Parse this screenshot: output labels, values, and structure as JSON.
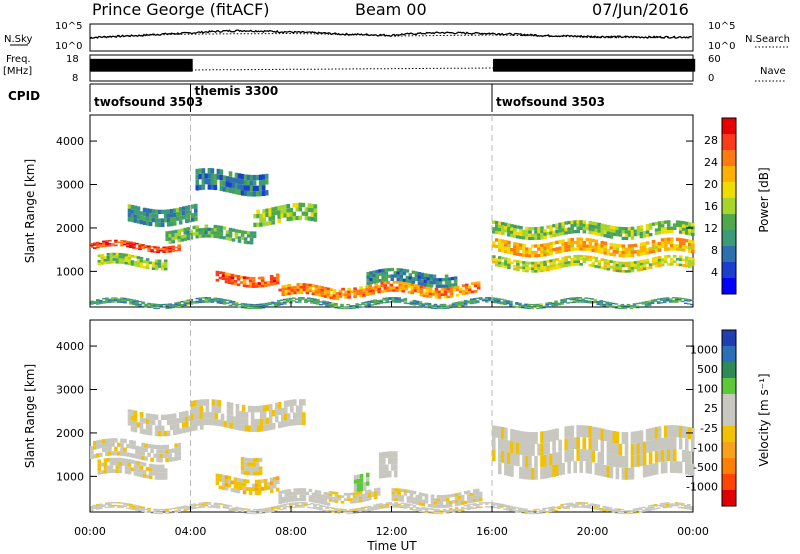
{
  "header": {
    "station": "Prince George (fitACF)",
    "beam": "Beam 00",
    "date": "07/Jun/2016"
  },
  "labels": {
    "nsky": "N.Sky",
    "nsearch": "N.Search",
    "freq_line1": "Freq.",
    "freq_line2": "[MHz]",
    "nave": "Nave",
    "cpid": "CPID",
    "power_range_ylabel": "Slant Range [km]",
    "velocity_range_ylabel": "Slant Range [km]",
    "xlabel": "Time UT",
    "power_cbar_label": "Power [dB]",
    "velocity_cbar_label": "Velocity [m s⁻¹]"
  },
  "noise_axis": {
    "left_ticks": [
      "10^5",
      "10^0"
    ],
    "right_ticks": [
      "10^5",
      "10^0"
    ]
  },
  "freq_axis": {
    "left_ticks": [
      "18",
      "8"
    ],
    "right_ticks": [
      "60",
      "0"
    ]
  },
  "cpid_segments": [
    {
      "label": "twofsound 3503",
      "start_hour": 0,
      "end_hour": 4
    },
    {
      "label": "themis 3300",
      "start_hour": 4,
      "end_hour": 16
    },
    {
      "label": "twofsound 3503",
      "start_hour": 16,
      "end_hour": 24
    }
  ],
  "power_colorbar": {
    "ticks": [
      "28",
      "24",
      "20",
      "16",
      "12",
      "8",
      "4"
    ],
    "colors": [
      "#e80000",
      "#ff3a1a",
      "#ff7a10",
      "#ffb000",
      "#f0dc00",
      "#a6d52c",
      "#4fa84a",
      "#3c9a78",
      "#2e6fb0",
      "#1a3fd0",
      "#0000ff"
    ]
  },
  "velocity_colorbar": {
    "ticks": [
      "1000",
      "500",
      "100",
      "25",
      "-25",
      "-100",
      "-500",
      "-1000"
    ],
    "colors": [
      "#1f3fb0",
      "#2a6fb8",
      "#2e8b57",
      "#5cc83a",
      "#c8c8c0",
      "#c8c8c0",
      "#f2c200",
      "#f7a21a",
      "#ff7f00",
      "#ff4500",
      "#e00000"
    ]
  },
  "chart_data": [
    {
      "type": "line",
      "title": "N.Sky",
      "xlabel": "",
      "ylabel": "N.Sky",
      "y_scale": "log",
      "ylim": [
        1,
        100000
      ],
      "series": [
        {
          "name": "N.Sky",
          "x": [
            0,
            2,
            4,
            6,
            8,
            10,
            12,
            14,
            16,
            18,
            20,
            22,
            24
          ],
          "y": [
            300,
            800,
            2500,
            8000,
            4000,
            1500,
            900,
            3000,
            2000,
            800,
            500,
            400,
            400
          ]
        },
        {
          "name": "N.Search",
          "x": [
            0,
            4,
            8,
            12,
            16,
            20,
            24
          ],
          "y": [
            200,
            1500,
            2000,
            600,
            1000,
            300,
            300
          ]
        }
      ]
    },
    {
      "type": "line",
      "title": "Freq.",
      "ylabel": "[MHz]",
      "ylim": [
        8,
        18
      ],
      "series": [
        {
          "name": "Freq.",
          "x": [
            0,
            4,
            4.01,
            16,
            16.01,
            24
          ],
          "y": [
            16,
            16,
            10.5,
            10.5,
            16,
            16
          ]
        },
        {
          "name": "Nave",
          "x": [
            0,
            4,
            16,
            24
          ],
          "y": [
            30,
            25,
            30,
            30
          ]
        }
      ]
    },
    {
      "type": "heatmap",
      "title": "Power [dB]",
      "xlabel": "",
      "ylabel": "Slant Range [km]",
      "xlim": [
        0,
        24
      ],
      "ylim": [
        180,
        4600
      ],
      "x_ticks": [
        "00:00",
        "04:00",
        "08:00",
        "12:00",
        "16:00",
        "20:00",
        "00:00"
      ],
      "y_ticks": [
        1000,
        2000,
        3000,
        4000
      ],
      "cbar_range": [
        0,
        30
      ],
      "bands": [
        {
          "t0": 0.0,
          "t1": 3.6,
          "r0": 1500,
          "r1": 1650,
          "value": 26
        },
        {
          "t0": 0.3,
          "t1": 3.0,
          "r0": 1100,
          "r1": 1350,
          "value": 14
        },
        {
          "t0": 1.5,
          "t1": 4.2,
          "r0": 2100,
          "r1": 2500,
          "value": 10
        },
        {
          "t0": 3.0,
          "t1": 6.5,
          "r0": 1700,
          "r1": 2000,
          "value": 12
        },
        {
          "t0": 4.2,
          "t1": 7.0,
          "r0": 2800,
          "r1": 3300,
          "value": 8
        },
        {
          "t0": 5.0,
          "t1": 7.5,
          "r0": 700,
          "r1": 950,
          "value": 24
        },
        {
          "t0": 6.5,
          "t1": 9.0,
          "r0": 2100,
          "r1": 2500,
          "value": 14
        },
        {
          "t0": 7.5,
          "t1": 10.0,
          "r0": 400,
          "r1": 650,
          "value": 22
        },
        {
          "t0": 10.0,
          "t1": 15.5,
          "r0": 450,
          "r1": 700,
          "value": 22
        },
        {
          "t0": 11.0,
          "t1": 14.5,
          "r0": 700,
          "r1": 1000,
          "value": 9
        },
        {
          "t0": 16.0,
          "t1": 24.0,
          "r0": 1800,
          "r1": 2100,
          "value": 14
        },
        {
          "t0": 16.0,
          "t1": 24.0,
          "r0": 1400,
          "r1": 1700,
          "value": 20
        },
        {
          "t0": 16.0,
          "t1": 24.0,
          "r0": 1050,
          "r1": 1300,
          "value": 16
        },
        {
          "t0": 0.0,
          "t1": 24.0,
          "r0": 200,
          "r1": 330,
          "value": 10
        }
      ]
    },
    {
      "type": "heatmap",
      "title": "Velocity [m s⁻¹]",
      "xlabel": "Time UT",
      "ylabel": "Slant Range [km]",
      "xlim": [
        0,
        24
      ],
      "ylim": [
        180,
        4600
      ],
      "x_ticks": [
        "00:00",
        "04:00",
        "08:00",
        "12:00",
        "16:00",
        "20:00",
        "00:00"
      ],
      "y_ticks": [
        1000,
        2000,
        3000,
        4000
      ],
      "cbar_range": [
        -1000,
        1000
      ],
      "bands": [
        {
          "t0": 0.0,
          "t1": 3.6,
          "r0": 1400,
          "r1": 1800,
          "value": 0
        },
        {
          "t0": 0.3,
          "t1": 3.0,
          "r0": 1000,
          "r1": 1350,
          "value": 0
        },
        {
          "t0": 1.5,
          "t1": 4.5,
          "r0": 2000,
          "r1": 2500,
          "value": 0
        },
        {
          "t0": 4.0,
          "t1": 8.5,
          "r0": 2100,
          "r1": 2700,
          "value": 0
        },
        {
          "t0": 5.0,
          "t1": 7.5,
          "r0": 650,
          "r1": 1000,
          "value": -150
        },
        {
          "t0": 6.0,
          "t1": 6.8,
          "r0": 1100,
          "r1": 1500,
          "value": -120
        },
        {
          "t0": 7.5,
          "t1": 9.5,
          "r0": 350,
          "r1": 650,
          "value": 80
        },
        {
          "t0": 9.5,
          "t1": 11.5,
          "r0": 450,
          "r1": 700,
          "value": -50
        },
        {
          "t0": 10.5,
          "t1": 11.0,
          "r0": 700,
          "r1": 1100,
          "value": 300
        },
        {
          "t0": 11.5,
          "t1": 12.2,
          "r0": 900,
          "r1": 1500,
          "value": 80
        },
        {
          "t0": 12.0,
          "t1": 15.5,
          "r0": 350,
          "r1": 650,
          "value": 0
        },
        {
          "t0": 16.0,
          "t1": 24.0,
          "r0": 1000,
          "r1": 2100,
          "value": 0
        },
        {
          "t0": 0.0,
          "t1": 24.0,
          "r0": 200,
          "r1": 330,
          "value": 10
        }
      ]
    }
  ]
}
